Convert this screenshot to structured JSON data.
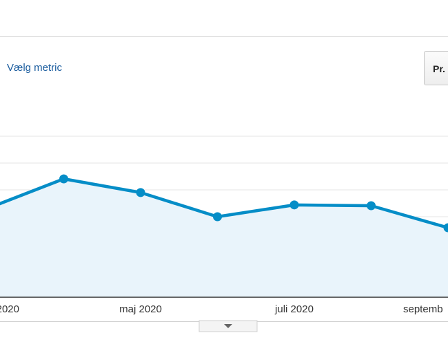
{
  "toolbar": {
    "metric_link": "Vælg metric",
    "button": "Pr."
  },
  "chart_data": {
    "type": "line",
    "categories": [
      "2020",
      null,
      "maj 2020",
      null,
      "juli 2020",
      null,
      "septemb"
    ],
    "values": [
      3.3,
      4.41,
      3.9,
      3.0,
      3.44,
      3.41,
      2.59
    ],
    "color": "#058dc7",
    "ylim": [
      0,
      6
    ],
    "grid": true
  }
}
